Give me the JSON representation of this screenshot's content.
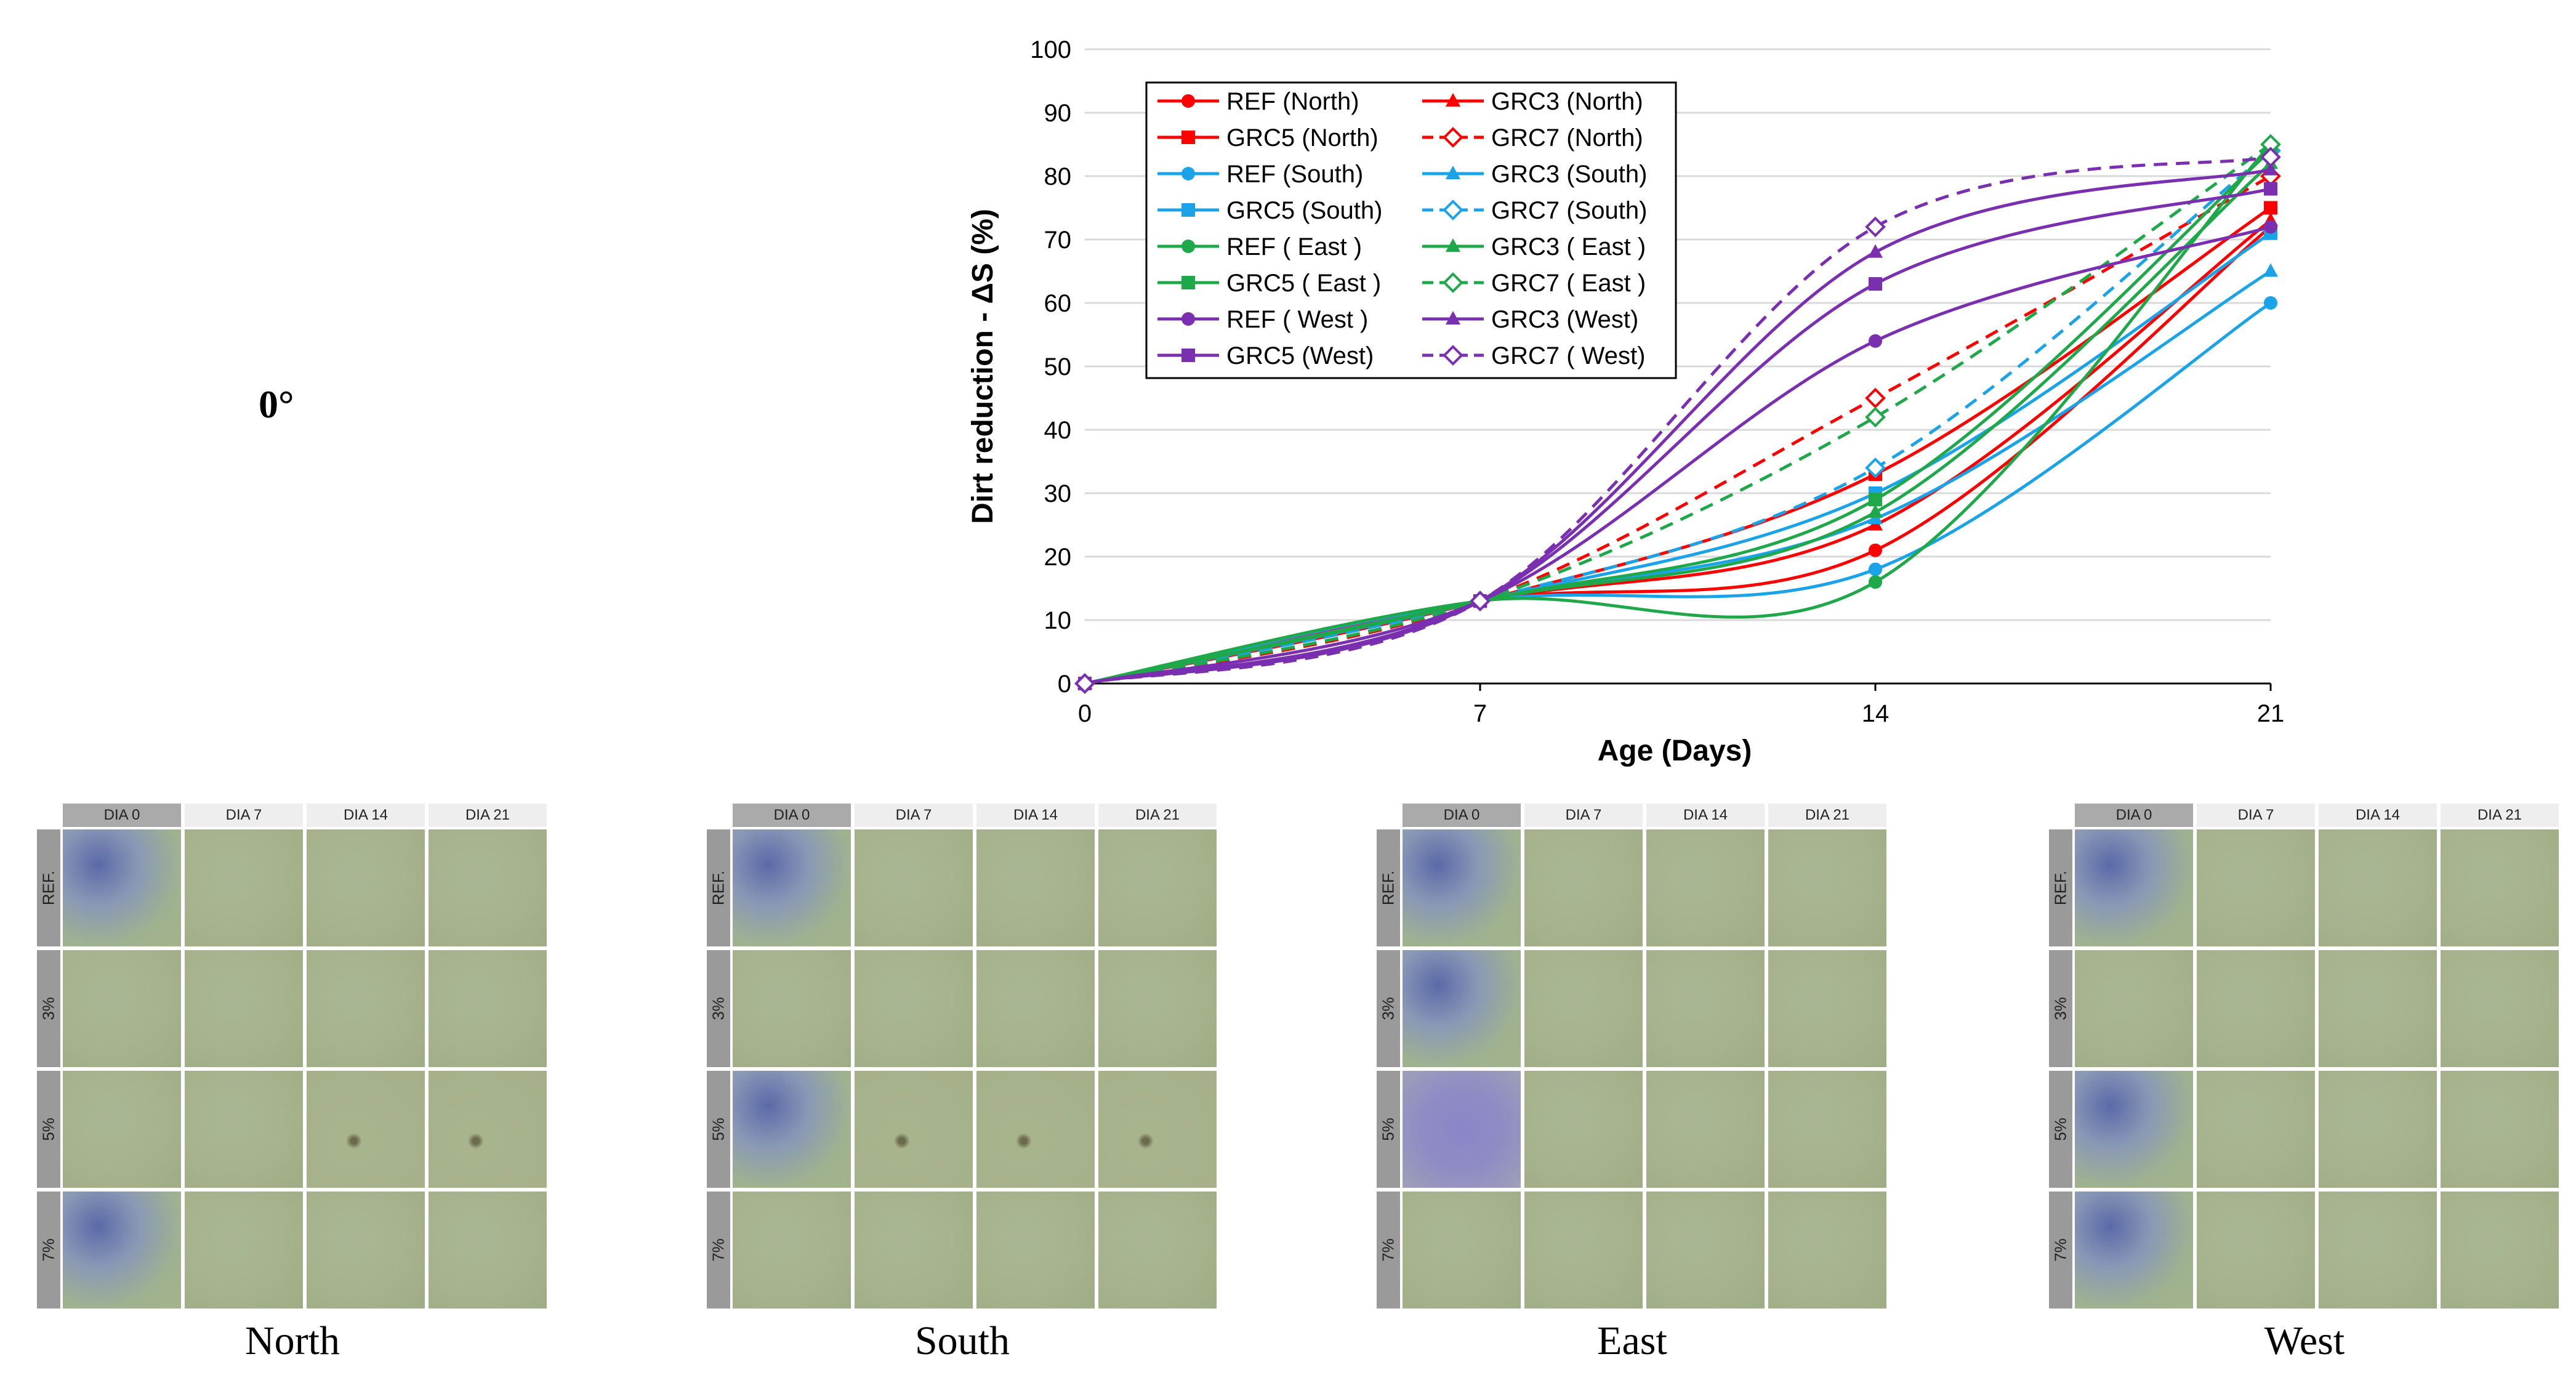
{
  "angle_label": "0°",
  "chart_data": {
    "type": "line",
    "xlabel": "Age (Days)",
    "ylabel": "Dirt reduction - ΔS (%)",
    "x": [
      0,
      7,
      14,
      21
    ],
    "xticks": [
      "0",
      "7",
      "14",
      "21"
    ],
    "ylim": [
      0,
      100
    ],
    "yticks": [
      "0",
      "10",
      "20",
      "30",
      "40",
      "50",
      "60",
      "70",
      "80",
      "90",
      "100"
    ],
    "grid": "horizontal",
    "legend_position": "top-left",
    "series": [
      {
        "name": "REF (North)",
        "values": [
          0,
          13,
          21,
          72
        ],
        "color": "#ff0000",
        "marker": "circle",
        "dash": false
      },
      {
        "name": "GRC3 (North)",
        "values": [
          0,
          13,
          25,
          73
        ],
        "color": "#ff0000",
        "marker": "triangle",
        "dash": false
      },
      {
        "name": "GRC5 (North)",
        "values": [
          0,
          13,
          33,
          75
        ],
        "color": "#ff0000",
        "marker": "square",
        "dash": false
      },
      {
        "name": "GRC7 (North)",
        "values": [
          0,
          13,
          45,
          80
        ],
        "color": "#ff0000",
        "marker": "diamond",
        "dash": true
      },
      {
        "name": "REF (South)",
        "values": [
          0,
          13,
          18,
          60
        ],
        "color": "#1aa3e8",
        "marker": "circle",
        "dash": false
      },
      {
        "name": "GRC3 (South)",
        "values": [
          0,
          13,
          26,
          65
        ],
        "color": "#1aa3e8",
        "marker": "triangle",
        "dash": false
      },
      {
        "name": "GRC5 (South)",
        "values": [
          0,
          13,
          30,
          71
        ],
        "color": "#1aa3e8",
        "marker": "square",
        "dash": false
      },
      {
        "name": "GRC7 (South)",
        "values": [
          0,
          13,
          34,
          84
        ],
        "color": "#1aa3e8",
        "marker": "diamond",
        "dash": true
      },
      {
        "name": "REF ( East )",
        "values": [
          0,
          13,
          16,
          85
        ],
        "color": "#1ea84a",
        "marker": "circle",
        "dash": false
      },
      {
        "name": "GRC3 ( East )",
        "values": [
          0,
          13,
          27,
          82
        ],
        "color": "#1ea84a",
        "marker": "triangle",
        "dash": false
      },
      {
        "name": "GRC5 ( East )",
        "values": [
          0,
          13,
          29,
          84
        ],
        "color": "#1ea84a",
        "marker": "square",
        "dash": false
      },
      {
        "name": "GRC7 ( East )",
        "values": [
          0,
          13,
          42,
          85
        ],
        "color": "#1ea84a",
        "marker": "diamond",
        "dash": true
      },
      {
        "name": "REF ( West )",
        "values": [
          0,
          13,
          54,
          72
        ],
        "color": "#7a2fb0",
        "marker": "circle",
        "dash": false
      },
      {
        "name": "GRC3 (West)",
        "values": [
          0,
          13,
          68,
          81
        ],
        "color": "#7a2fb0",
        "marker": "triangle",
        "dash": false
      },
      {
        "name": "GRC5 (West)",
        "values": [
          0,
          13,
          63,
          78
        ],
        "color": "#7a2fb0",
        "marker": "square",
        "dash": false
      },
      {
        "name": "GRC7 ( West)",
        "values": [
          0,
          13,
          72,
          83
        ],
        "color": "#7a2fb0",
        "marker": "diamond",
        "dash": true
      }
    ]
  },
  "panels": {
    "headers": [
      "DIA 0",
      "DIA 7",
      "DIA 14",
      "DIA 21"
    ],
    "rows": [
      "REF.",
      "3%",
      "5%",
      "7%"
    ],
    "captions": [
      "North",
      "South",
      "East",
      "West"
    ]
  }
}
